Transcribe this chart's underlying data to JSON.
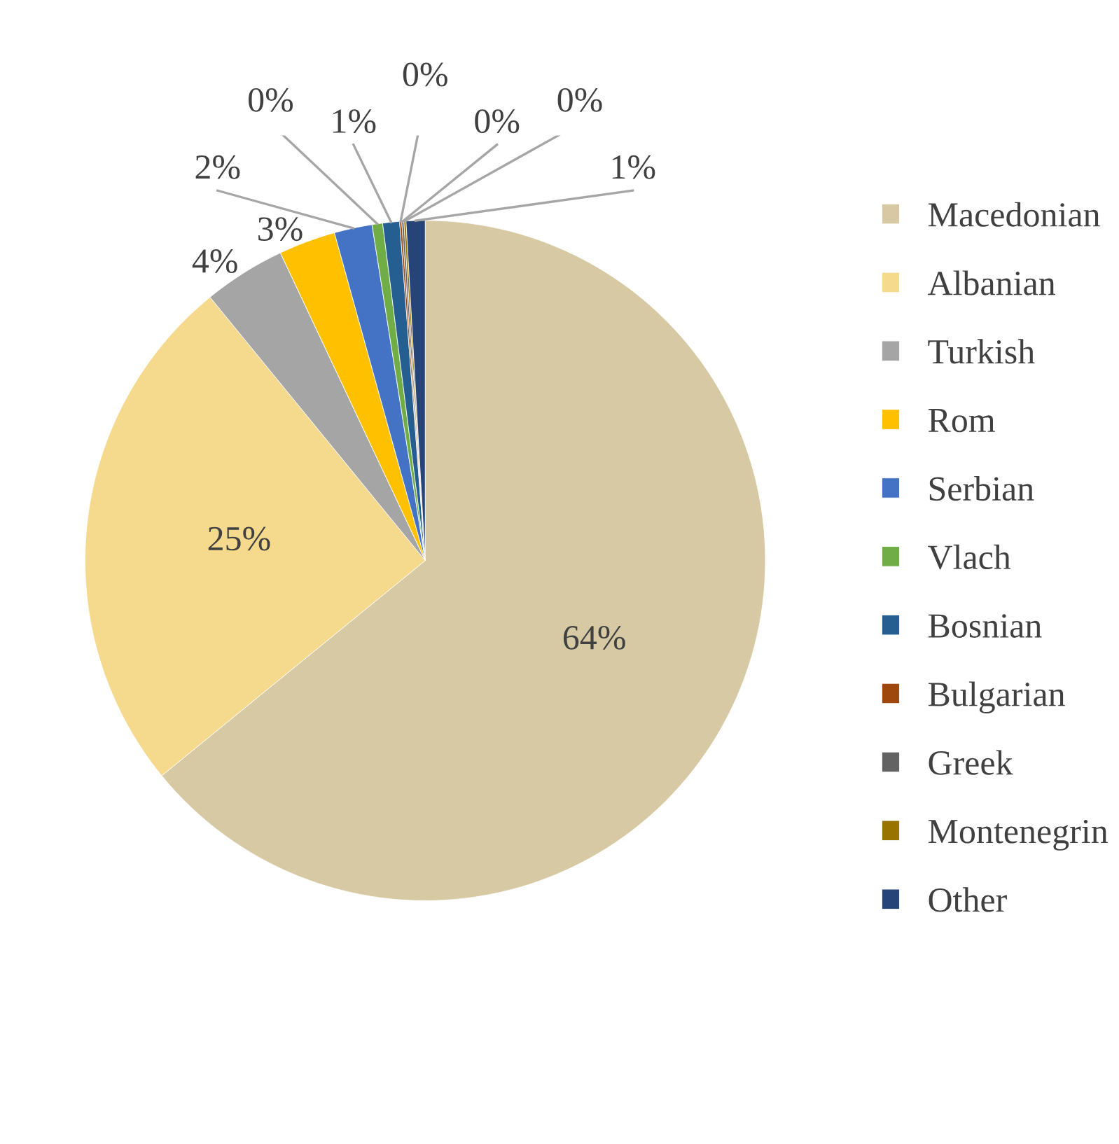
{
  "chart_data": {
    "type": "pie",
    "categories": [
      "Macedonian",
      "Albanian",
      "Turkish",
      "Rom",
      "Serbian",
      "Vlach",
      "Bosnian",
      "Bulgarian",
      "Greek",
      "Montenegrin",
      "Other"
    ],
    "values": [
      64.1,
      25.0,
      3.9,
      2.7,
      1.8,
      0.5,
      0.8,
      0.1,
      0.1,
      0.1,
      0.9
    ],
    "value_labels": [
      "64%",
      "25%",
      "4%",
      "3%",
      "2%",
      "0%",
      "1%",
      "0%",
      "0%",
      "0%",
      "1%"
    ],
    "colors": [
      "#d6c9a3",
      "#f5d98c",
      "#a5a5a5",
      "#ffc000",
      "#4472c4",
      "#70ad47",
      "#255e91",
      "#9e480e",
      "#636363",
      "#997300",
      "#264478"
    ],
    "legend": "right"
  }
}
